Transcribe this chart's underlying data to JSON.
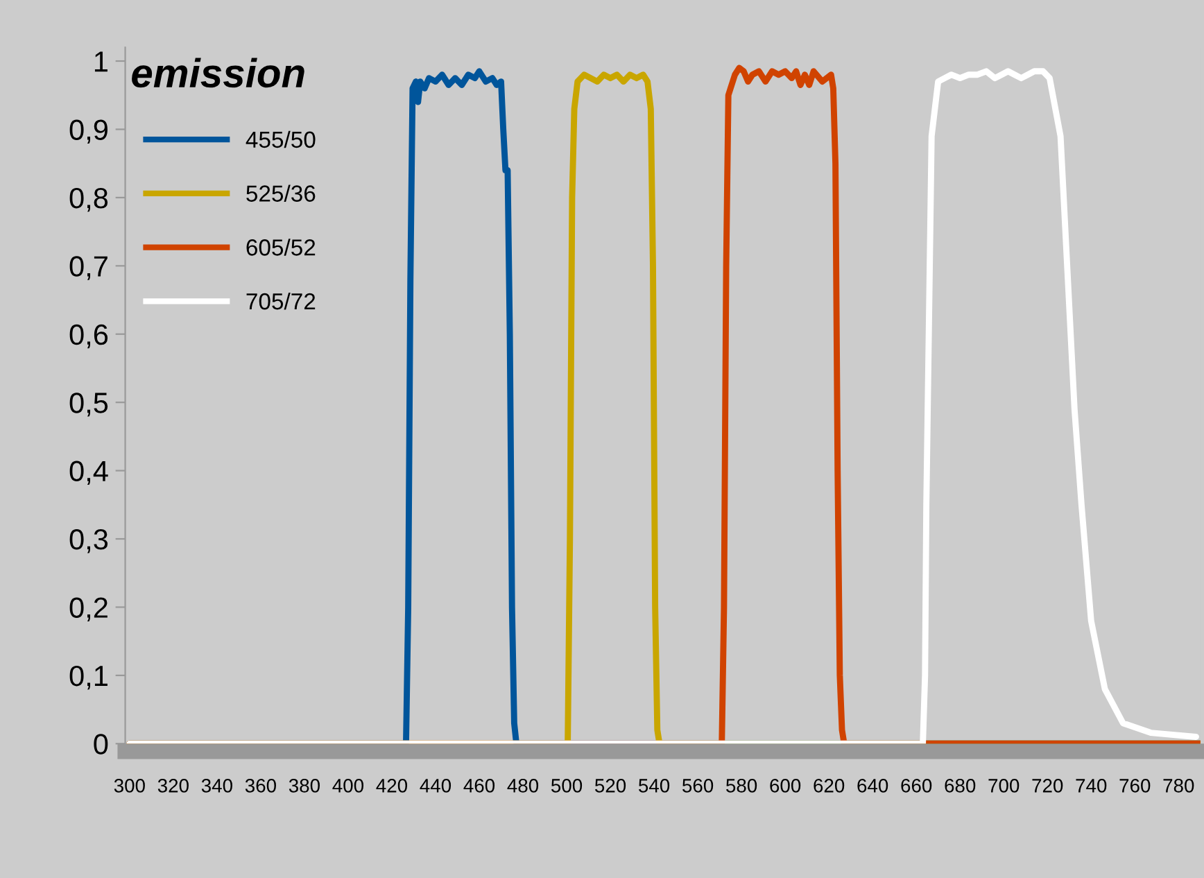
{
  "chart_data": {
    "type": "line",
    "title": "emission",
    "xlim": [
      298,
      790
    ],
    "xticks": [
      300,
      320,
      340,
      360,
      380,
      400,
      420,
      440,
      460,
      480,
      500,
      520,
      540,
      560,
      580,
      600,
      620,
      640,
      660,
      680,
      700,
      720,
      740,
      760,
      780
    ],
    "ylim": [
      0,
      1.02
    ],
    "yticks": [
      {
        "value": 0,
        "label": "0"
      },
      {
        "value": 0.1,
        "label": "0,1"
      },
      {
        "value": 0.2,
        "label": "0,2"
      },
      {
        "value": 0.3,
        "label": "0,3"
      },
      {
        "value": 0.4,
        "label": "0,4"
      },
      {
        "value": 0.5,
        "label": "0,5"
      },
      {
        "value": 0.6,
        "label": "0,6"
      },
      {
        "value": 0.7,
        "label": "0,7"
      },
      {
        "value": 0.8,
        "label": "0,8"
      },
      {
        "value": 0.9,
        "label": "0,9"
      },
      {
        "value": 1,
        "label": "1"
      }
    ],
    "grid": false,
    "legend": "top left",
    "marker": "none",
    "line_style": "solid",
    "series": [
      {
        "name": "455/50",
        "color": "#00559b",
        "x": [
          300,
          426.5,
          427.5,
          428.5,
          429.5,
          431,
          432,
          433,
          435,
          437,
          440,
          443,
          446,
          449,
          452,
          455,
          458,
          460,
          463,
          466,
          468,
          470,
          471,
          472,
          473,
          474,
          475,
          476,
          477,
          790
        ],
        "values": [
          0,
          0,
          0.2,
          0.68,
          0.96,
          0.97,
          0.94,
          0.97,
          0.96,
          0.975,
          0.97,
          0.98,
          0.965,
          0.975,
          0.965,
          0.98,
          0.975,
          0.985,
          0.97,
          0.975,
          0.965,
          0.97,
          0.9,
          0.84,
          0.84,
          0.6,
          0.2,
          0.03,
          0,
          0
        ]
      },
      {
        "name": "525/36",
        "color": "#c9a600",
        "x": [
          300,
          500.5,
          501.5,
          502.5,
          503.5,
          505,
          508,
          511,
          514,
          517,
          520,
          523,
          526,
          529,
          532,
          535,
          537,
          538.5,
          539.5,
          540.5,
          541.5,
          542.5,
          790
        ],
        "values": [
          0,
          0,
          0.3,
          0.8,
          0.93,
          0.97,
          0.98,
          0.975,
          0.97,
          0.98,
          0.975,
          0.98,
          0.97,
          0.98,
          0.975,
          0.98,
          0.97,
          0.93,
          0.7,
          0.2,
          0.02,
          0,
          0
        ]
      },
      {
        "name": "605/52",
        "color": "#d04300",
        "x": [
          300,
          571,
          572,
          573,
          574,
          575,
          577,
          579,
          581,
          583,
          585,
          588,
          591,
          594,
          597,
          600,
          603,
          605,
          607,
          609,
          611,
          613,
          617,
          621,
          622,
          623,
          624,
          625,
          626,
          627,
          790
        ],
        "values": [
          0,
          0,
          0.2,
          0.7,
          0.95,
          0.96,
          0.98,
          0.99,
          0.985,
          0.97,
          0.98,
          0.985,
          0.97,
          0.985,
          0.98,
          0.985,
          0.975,
          0.985,
          0.965,
          0.98,
          0.965,
          0.985,
          0.97,
          0.98,
          0.96,
          0.85,
          0.4,
          0.1,
          0.02,
          0,
          0
        ]
      },
      {
        "name": "705/72",
        "color": "#ffffff",
        "x": [
          300,
          663,
          664,
          664.6,
          667,
          670,
          673,
          676,
          680,
          684,
          688,
          692,
          696,
          699,
          702,
          705,
          708,
          711,
          714,
          718,
          721,
          726,
          729.2,
          732.4,
          735.6,
          740,
          746.3,
          754.6,
          767.3,
          788
        ],
        "values": [
          0,
          0,
          0.1,
          0.35,
          0.89,
          0.97,
          0.975,
          0.98,
          0.975,
          0.98,
          0.98,
          0.985,
          0.975,
          0.98,
          0.985,
          0.98,
          0.975,
          0.98,
          0.985,
          0.985,
          0.975,
          0.89,
          0.69,
          0.49,
          0.35,
          0.18,
          0.08,
          0.03,
          0.016,
          0.01
        ]
      }
    ]
  }
}
